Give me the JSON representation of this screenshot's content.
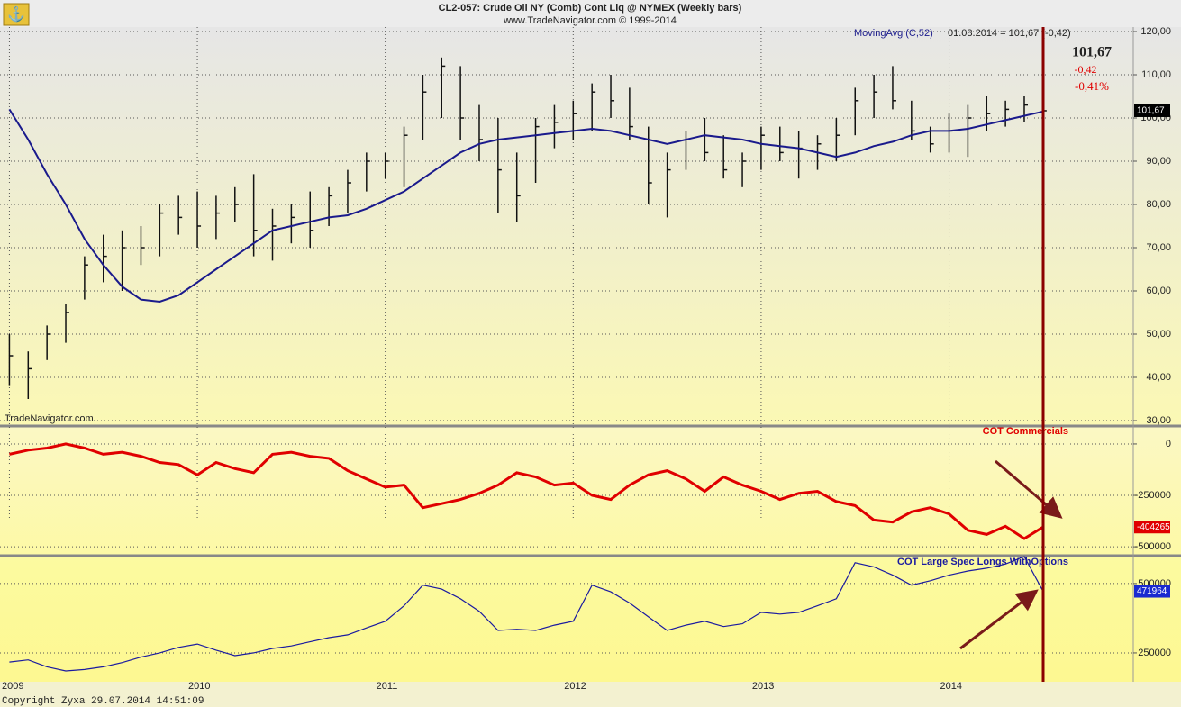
{
  "chart_data": [
    {
      "type": "ohlc",
      "title": "CL2-057:  Crude Oil NY (Comb) Cont Liq @ NYMEX  (Weekly bars)",
      "subtitle": "www.TradeNavigator.com © 1999-2014",
      "watermark": "TradeNavigator.com",
      "status": "01.08.2014 = 101,67 (-0,42)",
      "quote": {
        "last": "101,67",
        "change": "-0,42",
        "pct": "-0,41%"
      },
      "x": [
        2009.0,
        2009.1,
        2009.2,
        2009.3,
        2009.4,
        2009.5,
        2009.6,
        2009.7,
        2009.8,
        2009.9,
        2010.0,
        2010.1,
        2010.2,
        2010.3,
        2010.4,
        2010.5,
        2010.6,
        2010.7,
        2010.8,
        2010.9,
        2011.0,
        2011.1,
        2011.2,
        2011.3,
        2011.4,
        2011.5,
        2011.6,
        2011.7,
        2011.8,
        2011.9,
        2012.0,
        2012.1,
        2012.2,
        2012.3,
        2012.4,
        2012.5,
        2012.6,
        2012.7,
        2012.8,
        2012.9,
        2013.0,
        2013.1,
        2013.2,
        2013.3,
        2013.4,
        2013.5,
        2013.6,
        2013.7,
        2013.8,
        2013.9,
        2014.0,
        2014.1,
        2014.2,
        2014.3,
        2014.4,
        2014.5
      ],
      "high": [
        50,
        46,
        52,
        57,
        68,
        73,
        74,
        75,
        80,
        82,
        83,
        82,
        84,
        87,
        79,
        80,
        83,
        84,
        88,
        92,
        92,
        98,
        110,
        114,
        112,
        103,
        100,
        92,
        100,
        103,
        104,
        108,
        110,
        107,
        98,
        92,
        97,
        100,
        96,
        92,
        98,
        98,
        97,
        96,
        100,
        107,
        110,
        112,
        104,
        98,
        101,
        103,
        105,
        104,
        105,
        108
      ],
      "low": [
        38,
        35,
        44,
        48,
        58,
        62,
        60,
        66,
        68,
        73,
        70,
        72,
        76,
        68,
        67,
        71,
        70,
        75,
        78,
        83,
        86,
        84,
        95,
        100,
        95,
        90,
        78,
        76,
        85,
        93,
        95,
        97,
        100,
        95,
        80,
        77,
        88,
        90,
        86,
        84,
        88,
        90,
        86,
        88,
        90,
        96,
        100,
        102,
        95,
        92,
        92,
        91,
        97,
        98,
        99,
        99
      ],
      "close": [
        45,
        42,
        50,
        55,
        66,
        68,
        70,
        70,
        78,
        77,
        75,
        78,
        80,
        74,
        75,
        77,
        74,
        82,
        85,
        90,
        90,
        96,
        106,
        112,
        100,
        95,
        88,
        82,
        98,
        99,
        101,
        106,
        104,
        98,
        85,
        88,
        95,
        92,
        88,
        90,
        96,
        92,
        93,
        94,
        96,
        104,
        106,
        104,
        97,
        94,
        97,
        100,
        101,
        102,
        103,
        101.67
      ],
      "bar_color": "#111111",
      "series": [
        {
          "name": "MovingAvg (C,52)",
          "color": "#1a1a8c",
          "values": [
            102,
            95,
            87,
            80,
            72,
            66,
            61,
            58,
            57.5,
            59,
            62,
            65,
            68,
            71,
            74,
            75,
            76,
            77,
            77.5,
            79,
            81,
            83,
            86,
            89,
            92,
            94,
            95,
            95.5,
            96,
            96.5,
            97,
            97.5,
            97,
            96,
            95,
            94,
            95,
            96,
            95.5,
            95,
            94,
            93.5,
            93,
            92,
            91,
            92,
            93.5,
            94.5,
            96,
            97,
            97,
            97.5,
            98.5,
            99.5,
            100.5,
            101.5
          ]
        }
      ],
      "last_value": {
        "value": 101.67,
        "label": "101,67"
      },
      "xlim": [
        2008.95,
        2014.98
      ],
      "ylim": [
        28.96,
        121.04
      ],
      "yticks": [
        {
          "value": 30,
          "label": "30,00"
        },
        {
          "value": 40,
          "label": "40,00"
        },
        {
          "value": 50,
          "label": "50,00"
        },
        {
          "value": 60,
          "label": "60,00"
        },
        {
          "value": 70,
          "label": "70,00"
        },
        {
          "value": 80,
          "label": "80,00"
        },
        {
          "value": 90,
          "label": "90,00"
        },
        {
          "value": 100,
          "label": "100,00"
        },
        {
          "value": 110,
          "label": "110,00"
        },
        {
          "value": 120,
          "label": "120,00"
        }
      ],
      "grid": true
    },
    {
      "type": "line",
      "title": "COT Commercials",
      "color": "#e00000",
      "x": [
        2009.0,
        2009.1,
        2009.2,
        2009.3,
        2009.4,
        2009.5,
        2009.6,
        2009.7,
        2009.8,
        2009.9,
        2010.0,
        2010.1,
        2010.2,
        2010.3,
        2010.4,
        2010.5,
        2010.6,
        2010.7,
        2010.8,
        2010.9,
        2011.0,
        2011.1,
        2011.2,
        2011.3,
        2011.4,
        2011.5,
        2011.6,
        2011.7,
        2011.8,
        2011.9,
        2012.0,
        2012.1,
        2012.2,
        2012.3,
        2012.4,
        2012.5,
        2012.6,
        2012.7,
        2012.8,
        2012.9,
        2013.0,
        2013.1,
        2013.2,
        2013.3,
        2013.4,
        2013.5,
        2013.6,
        2013.7,
        2013.8,
        2013.9,
        2014.0,
        2014.1,
        2014.2,
        2014.3,
        2014.4,
        2014.5
      ],
      "values": [
        -50000,
        -30000,
        -20000,
        0,
        -20000,
        -50000,
        -40000,
        -60000,
        -90000,
        -100000,
        -150000,
        -90000,
        -120000,
        -140000,
        -50000,
        -40000,
        -60000,
        -70000,
        -130000,
        -170000,
        -210000,
        -200000,
        -310000,
        -290000,
        -270000,
        -240000,
        -200000,
        -140000,
        -160000,
        -200000,
        -190000,
        -250000,
        -270000,
        -200000,
        -150000,
        -130000,
        -170000,
        -230000,
        -160000,
        -200000,
        -230000,
        -270000,
        -240000,
        -230000,
        -280000,
        -300000,
        -370000,
        -380000,
        -330000,
        -310000,
        -340000,
        -420000,
        -440000,
        -400000,
        -460000,
        -404265
      ],
      "last_value": -404265,
      "xlim": [
        2008.95,
        2014.98
      ],
      "ylim": [
        -539000,
        83000
      ],
      "yticks": [
        0,
        -250000,
        -500000
      ],
      "grid": true
    },
    {
      "type": "line",
      "title": "COT Large Spec Longs WithOptions",
      "color": "#1a1aa0",
      "x": [
        2009.0,
        2009.1,
        2009.2,
        2009.3,
        2009.4,
        2009.5,
        2009.6,
        2009.7,
        2009.8,
        2009.9,
        2010.0,
        2010.1,
        2010.2,
        2010.3,
        2010.4,
        2010.5,
        2010.6,
        2010.7,
        2010.8,
        2010.9,
        2011.0,
        2011.1,
        2011.2,
        2011.3,
        2011.4,
        2011.5,
        2011.6,
        2011.7,
        2011.8,
        2011.9,
        2012.0,
        2012.1,
        2012.2,
        2012.3,
        2012.4,
        2012.5,
        2012.6,
        2012.7,
        2012.8,
        2012.9,
        2013.0,
        2013.1,
        2013.2,
        2013.3,
        2013.4,
        2013.5,
        2013.6,
        2013.7,
        2013.8,
        2013.9,
        2014.0,
        2014.1,
        2014.2,
        2014.3,
        2014.4,
        2014.5
      ],
      "values": [
        217000,
        225000,
        200000,
        185000,
        190000,
        200000,
        215000,
        235000,
        250000,
        270000,
        282000,
        260000,
        240000,
        250000,
        266000,
        275000,
        290000,
        305000,
        315000,
        340000,
        364000,
        420000,
        494000,
        480000,
        445000,
        400000,
        331000,
        335000,
        331000,
        350000,
        364000,
        494000,
        470000,
        430000,
        380000,
        331000,
        350000,
        364000,
        345000,
        355000,
        396000,
        390000,
        396000,
        420000,
        445000,
        575000,
        560000,
        530000,
        494000,
        510000,
        530000,
        545000,
        555000,
        570000,
        597000,
        471964
      ],
      "last_value": 471964,
      "xlim": [
        2008.95,
        2014.98
      ],
      "ylim": [
        146000,
        597000
      ],
      "yticks": [
        500000,
        250000
      ],
      "xticks": [
        2009,
        2010,
        2011,
        2012,
        2013,
        2014
      ],
      "grid": true,
      "footer": "Copyright Zyxa    29.07.2014 14:51:09"
    }
  ]
}
